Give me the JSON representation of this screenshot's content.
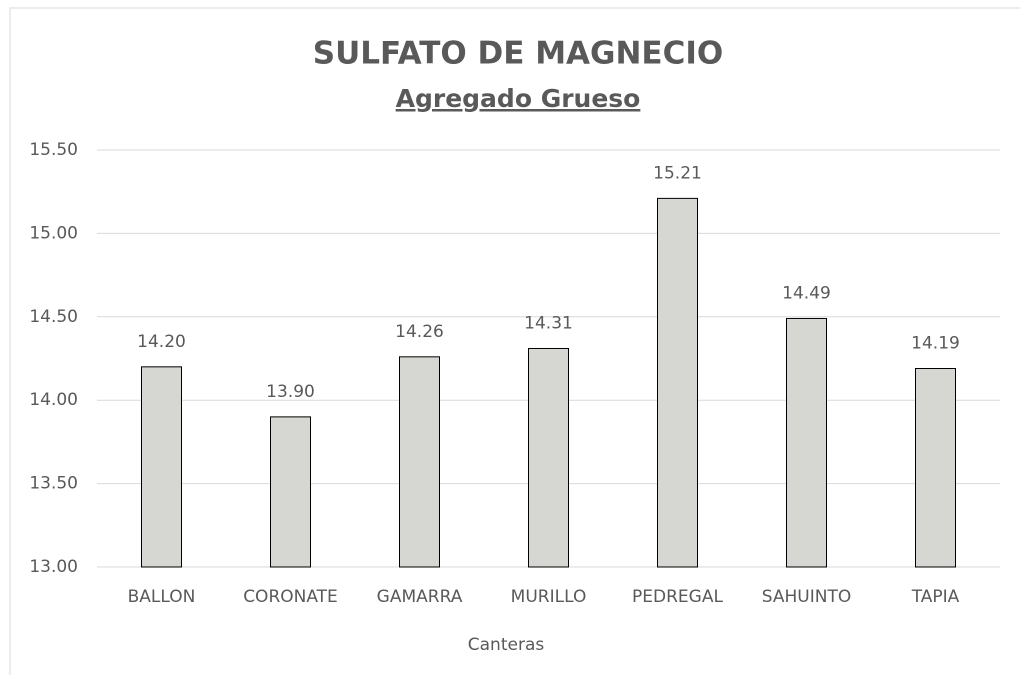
{
  "chart_data": {
    "type": "bar",
    "title": "SULFATO DE MAGNECIO",
    "subtitle": "Agregado Grueso",
    "x_label": "Canteras",
    "categories": [
      "BALLON",
      "CORONATE",
      "GAMARRA",
      "MURILLO",
      "PEDREGAL",
      "SAHUINTO",
      "TAPIA"
    ],
    "values": [
      14.2,
      13.9,
      14.26,
      14.31,
      15.21,
      14.49,
      14.19
    ],
    "value_labels": [
      "14.20",
      "13.90",
      "14.26",
      "14.31",
      "15.21",
      "14.49",
      "14.19"
    ],
    "color": "#d6d6d3",
    "ylim": [
      13,
      15.5
    ],
    "yticks": [
      {
        "value": 13,
        "label": "13.00"
      },
      {
        "value": 13.5,
        "label": "13.50"
      },
      {
        "value": 14,
        "label": "14.00"
      },
      {
        "value": 14.5,
        "label": "14.50"
      },
      {
        "value": 15,
        "label": "15.00"
      },
      {
        "value": 15.5,
        "label": "15.50"
      }
    ],
    "grid": true
  }
}
